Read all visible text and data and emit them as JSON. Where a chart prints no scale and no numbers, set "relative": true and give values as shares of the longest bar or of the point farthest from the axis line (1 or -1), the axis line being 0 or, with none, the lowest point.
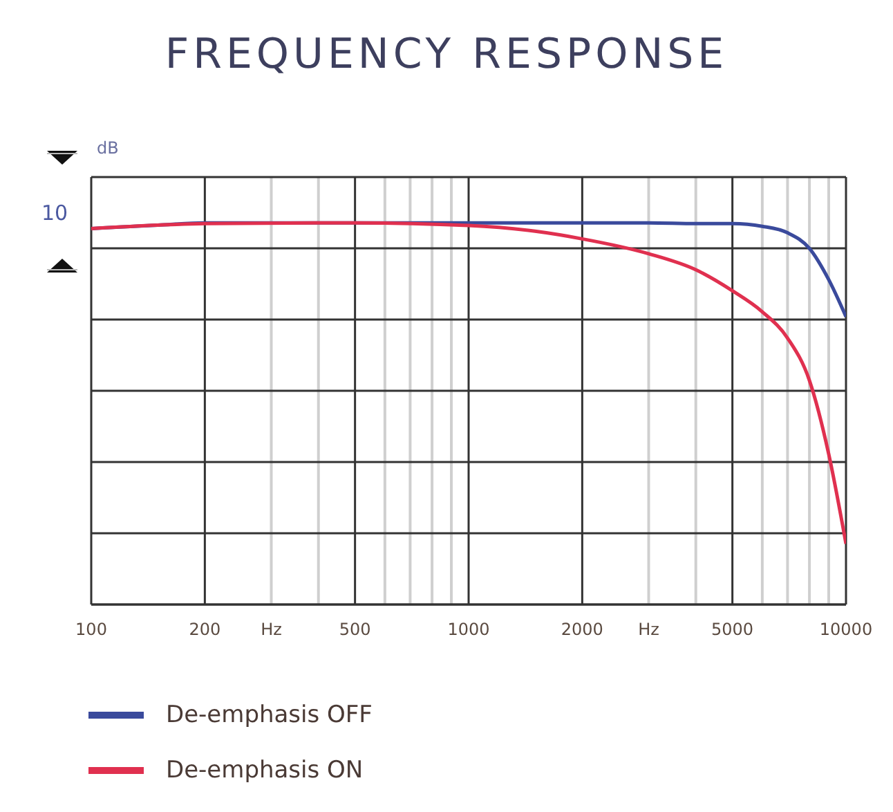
{
  "chart_data": {
    "type": "line",
    "title": "FREQUENCY RESPONSE",
    "annotations": [
      "dB",
      "10"
    ],
    "relative": true,
    "log": "x",
    "grid": true,
    "legend": "bottom",
    "marker": "none",
    "line_style": "solid",
    "x": [
      100,
      150,
      200,
      500,
      1000,
      1500,
      2000,
      3000,
      4000,
      5000,
      6000,
      7000,
      8000,
      9000,
      10000
    ],
    "xlim": [
      100,
      10000
    ],
    "xticks": [
      100,
      200,
      {
        "value": 300,
        "label": "Hz"
      },
      {
        "value": 400,
        "label": null
      },
      500,
      {
        "value": 600,
        "label": null
      },
      {
        "value": 700,
        "label": null
      },
      {
        "value": 800,
        "label": null
      },
      {
        "value": 900,
        "label": null
      },
      1000,
      2000,
      {
        "value": 3000,
        "label": "Hz"
      },
      {
        "value": 4000,
        "label": null
      },
      5000,
      {
        "value": 6000,
        "label": null
      },
      {
        "value": 7000,
        "label": null
      },
      {
        "value": 8000,
        "label": null
      },
      {
        "value": 9000,
        "label": null
      },
      10000
    ],
    "series": [
      {
        "name": "De-emphasis OFF",
        "color": "#3a4a9c",
        "values": [
          0.985,
          0.994,
          1,
          1,
          1,
          1,
          1,
          1,
          0.998,
          0.998,
          0.991,
          0.974,
          0.933,
          0.851,
          0.754
        ]
      },
      {
        "name": "De-emphasis ON",
        "color": "#e0304f",
        "values": [
          0.985,
          0.994,
          0.998,
          1,
          0.993,
          0.978,
          0.958,
          0.919,
          0.877,
          0.822,
          0.767,
          0.698,
          0.587,
          0.394,
          0.159
        ]
      }
    ]
  }
}
